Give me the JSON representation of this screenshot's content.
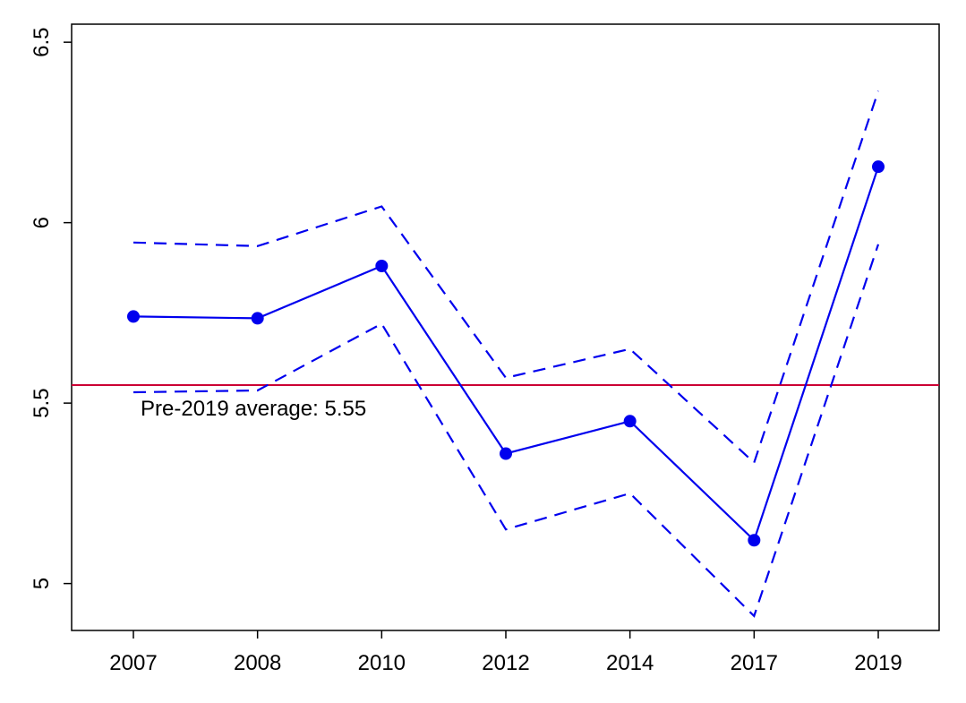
{
  "chart_data": {
    "type": "line",
    "categories": [
      "2007",
      "2008",
      "2010",
      "2012",
      "2014",
      "2017",
      "2019"
    ],
    "series": [
      {
        "role": "estimate",
        "values": [
          5.74,
          5.735,
          5.88,
          5.36,
          5.45,
          5.12,
          6.155
        ]
      },
      {
        "role": "upper-bound",
        "values": [
          5.945,
          5.935,
          6.045,
          5.57,
          5.65,
          5.335,
          6.365
        ]
      },
      {
        "role": "lower-bound",
        "values": [
          5.53,
          5.535,
          5.72,
          5.15,
          5.25,
          4.91,
          5.94
        ]
      }
    ],
    "reference_line": {
      "y": 5.55,
      "label": "Pre-2019 average: 5.55",
      "color": "#cc0033"
    },
    "y_ticks": [
      5,
      5.5,
      6,
      6.5
    ],
    "y_tick_labels": [
      "5",
      "5.5",
      "6",
      "6.5"
    ],
    "ylim": [
      4.87,
      6.55
    ],
    "grid": false,
    "legend": "none",
    "series_color": "#0000ee"
  }
}
